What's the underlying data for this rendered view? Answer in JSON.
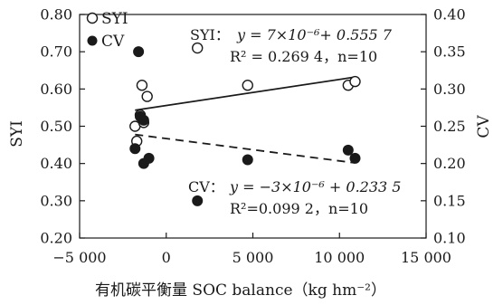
{
  "chart_data": {
    "type": "scatter",
    "xlabel": "有机碳平衡量 SOC balance（kg hm⁻²）",
    "ylabel_left": "SYI",
    "ylabel_right": "CV",
    "xlim": [
      -5000,
      15000
    ],
    "ylim_left": [
      0.2,
      0.8
    ],
    "ylim_right": [
      0.1,
      0.4
    ],
    "x_ticks": [
      "−5 000",
      "0",
      "5 000",
      "10 000",
      "15 000"
    ],
    "x_tick_values": [
      -5000,
      0,
      5000,
      10000,
      15000
    ],
    "y_left_ticks": [
      "0.20",
      "0.30",
      "0.40",
      "0.50",
      "0.60",
      "0.70",
      "0.80"
    ],
    "y_left_tick_values": [
      0.2,
      0.3,
      0.4,
      0.5,
      0.6,
      0.7,
      0.8
    ],
    "y_right_ticks": [
      "0.10",
      "0.15",
      "0.20",
      "0.25",
      "0.30",
      "0.35",
      "0.40"
    ],
    "y_right_tick_values": [
      0.1,
      0.15,
      0.2,
      0.25,
      0.3,
      0.35,
      0.4
    ],
    "legend": [
      {
        "name": "SYI",
        "marker": "open-circle"
      },
      {
        "name": "CV",
        "marker": "filled-circle"
      }
    ],
    "legend_placement": "top-left",
    "series": [
      {
        "name": "SYI",
        "axis": "left",
        "marker": "open-circle",
        "points": [
          {
            "x": -1700,
            "y": 0.46
          },
          {
            "x": -1800,
            "y": 0.5
          },
          {
            "x": -1500,
            "y": 0.53
          },
          {
            "x": -1300,
            "y": 0.51
          },
          {
            "x": -1400,
            "y": 0.61
          },
          {
            "x": -1100,
            "y": 0.58
          },
          {
            "x": 1800,
            "y": 0.71
          },
          {
            "x": 4700,
            "y": 0.61
          },
          {
            "x": 10500,
            "y": 0.61
          },
          {
            "x": 10900,
            "y": 0.62
          }
        ],
        "fit": {
          "slope": 7e-06,
          "intercept": 0.5557,
          "x_range": [
            -1800,
            10900
          ],
          "style": "solid"
        }
      },
      {
        "name": "CV",
        "axis": "right",
        "marker": "filled-circle",
        "points": [
          {
            "x": -1600,
            "y": 0.35
          },
          {
            "x": -1500,
            "y": 0.263
          },
          {
            "x": -1300,
            "y": 0.258
          },
          {
            "x": -1800,
            "y": 0.22
          },
          {
            "x": -1300,
            "y": 0.2
          },
          {
            "x": -1000,
            "y": 0.207
          },
          {
            "x": 1800,
            "y": 0.15
          },
          {
            "x": 4700,
            "y": 0.205
          },
          {
            "x": 10500,
            "y": 0.218
          },
          {
            "x": 10900,
            "y": 0.207
          }
        ],
        "fit": {
          "slope": -3e-06,
          "intercept": 0.2335,
          "x_range": [
            -1800,
            10900
          ],
          "style": "dashed"
        }
      }
    ],
    "annotations": {
      "syi": {
        "label": "SYI：",
        "equation": "y = 7×10⁻⁶+ 0.555 7",
        "stats": "R² = 0.269 4，n=10"
      },
      "cv": {
        "label": "CV：",
        "equation": "y = −3×10⁻⁶ + 0.233 5",
        "stats": "R²=0.099 2，n=10"
      }
    },
    "grid": false
  }
}
